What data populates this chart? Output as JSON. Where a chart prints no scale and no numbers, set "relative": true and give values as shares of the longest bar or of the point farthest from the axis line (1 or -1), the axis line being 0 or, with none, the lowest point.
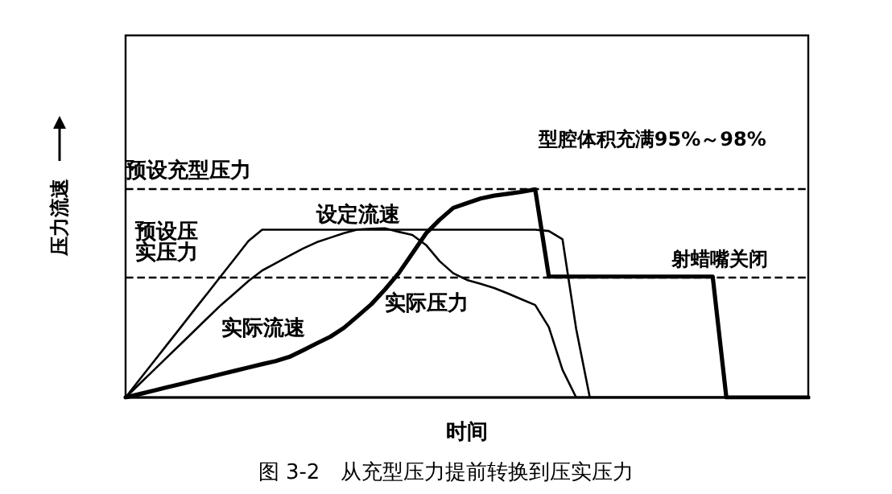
{
  "chart_data": {
    "type": "line",
    "relative": true,
    "title": "图 3-2　从充型压力提前转换到压实压力",
    "xlabel": "时间",
    "ylabel": "压力流速",
    "legend": false,
    "grid": false,
    "marker": "none",
    "categories": [
      null,
      null,
      null,
      null,
      null,
      null,
      null,
      null,
      null,
      null,
      null,
      null,
      null,
      null,
      null,
      null,
      null,
      null,
      null,
      null,
      null,
      null,
      null,
      null,
      null,
      null,
      null,
      null,
      null,
      null,
      null,
      null,
      null,
      null,
      null,
      null,
      null,
      null,
      null,
      null,
      null,
      null,
      null,
      null,
      null,
      null,
      null,
      null,
      null,
      null,
      null
    ],
    "series": [
      {
        "name": "设定流速",
        "color": "#000000",
        "values": [
          0,
          0.084,
          0.167,
          0.251,
          0.334,
          0.418,
          0.501,
          0.585,
          0.668,
          0.752,
          0.806,
          0.806,
          0.806,
          0.806,
          0.806,
          0.806,
          0.806,
          0.806,
          0.806,
          0.806,
          0.806,
          0.806,
          0.806,
          0.806,
          0.806,
          0.806,
          0.806,
          0.806,
          0.806,
          0.806,
          0.806,
          0.8,
          0.76,
          0.33,
          0,
          0,
          0,
          0,
          0,
          0,
          0,
          0,
          0,
          0,
          0,
          0,
          0,
          0,
          0,
          0,
          0
        ]
      },
      {
        "name": "实际流速",
        "color": "#000000",
        "values": [
          0,
          0.064,
          0.127,
          0.191,
          0.254,
          0.318,
          0.382,
          0.445,
          0.502,
          0.56,
          0.61,
          0.645,
          0.681,
          0.716,
          0.746,
          0.768,
          0.79,
          0.807,
          0.811,
          0.813,
          0.796,
          0.781,
          0.733,
          0.655,
          0.597,
          0.565,
          0.546,
          0.526,
          0.5,
          0.472,
          0.444,
          0.338,
          0.133,
          0,
          0,
          0,
          0,
          0,
          0,
          0,
          0,
          0,
          0,
          0,
          0,
          0,
          0,
          0,
          0,
          0,
          0
        ]
      },
      {
        "name": "实际压力",
        "color": "#000000",
        "values": [
          0,
          0.016,
          0.032,
          0.048,
          0.064,
          0.08,
          0.096,
          0.112,
          0.128,
          0.144,
          0.16,
          0.175,
          0.195,
          0.227,
          0.26,
          0.292,
          0.335,
          0.391,
          0.448,
          0.519,
          0.597,
          0.692,
          0.788,
          0.854,
          0.911,
          0.934,
          0.956,
          0.97,
          0.979,
          0.988,
          1.0,
          0.581,
          0.581,
          0.581,
          0.581,
          0.581,
          0.581,
          0.581,
          0.581,
          0.581,
          0.581,
          0.581,
          0.581,
          0.581,
          0,
          0,
          0,
          0,
          0,
          0,
          0
        ]
      }
    ],
    "ref_lines": [
      {
        "axis": "y",
        "value": 1.0,
        "label": "预设充型压力",
        "line_style": "dashed",
        "color": "#000000"
      },
      {
        "axis": "y",
        "value": 0.581,
        "label": "预设压实压力",
        "line_style": "dashed",
        "color": "#000000"
      }
    ],
    "annotations": [
      {
        "text": "型腔体积充满95%～98%",
        "y": 1.0
      },
      {
        "text": "射蜡嘴关闭",
        "y": 0.581
      }
    ]
  }
}
